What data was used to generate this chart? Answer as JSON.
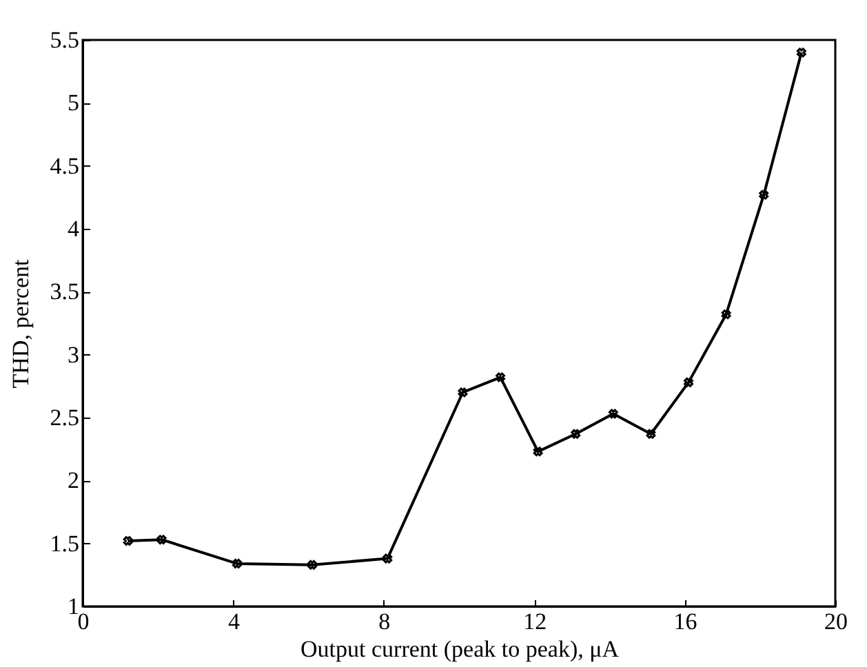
{
  "chart_data": {
    "type": "line",
    "xlabel": "Output current (peak to peak), μA",
    "ylabel": "THD, percent",
    "series": [
      {
        "color": "#000000",
        "x": [
          1.2,
          2.1,
          4.1,
          6.1,
          8.1,
          10.1,
          11.1,
          12.1,
          13.1,
          14.1,
          15.1,
          16.1,
          17.1,
          18.1,
          19.1
        ],
        "values": [
          1.52,
          1.53,
          1.34,
          1.33,
          1.38,
          2.7,
          2.82,
          2.23,
          2.37,
          2.53,
          2.37,
          2.78,
          3.32,
          4.27,
          5.4
        ]
      }
    ],
    "xlim": [
      0,
      20
    ],
    "xticks": [
      0,
      4,
      8,
      12,
      16,
      20
    ],
    "ylim": [
      1,
      5.5
    ],
    "yticks": [
      1,
      1.5,
      2,
      2.5,
      3,
      3.5,
      4,
      4.5,
      5,
      5.5
    ],
    "marker": "cross",
    "line_style": "solid",
    "grid": false
  }
}
